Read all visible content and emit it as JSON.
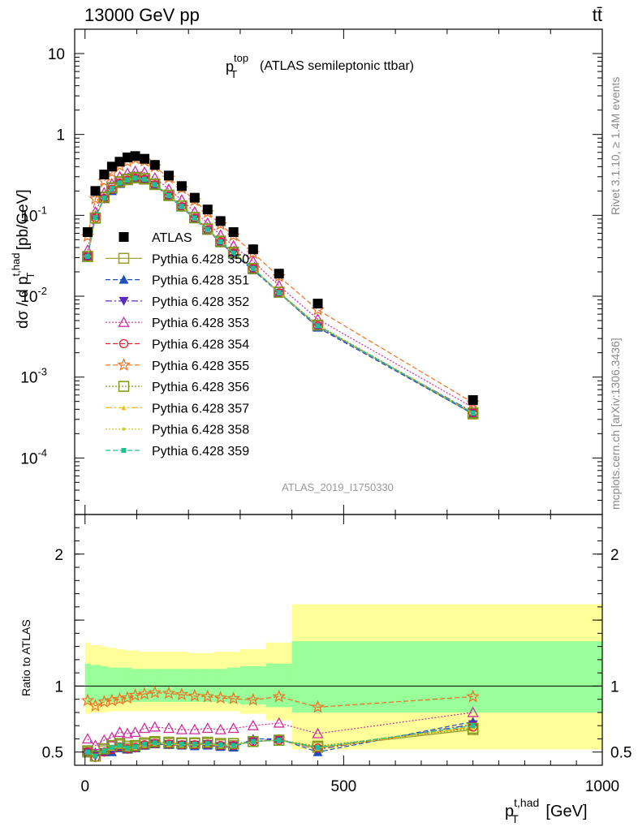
{
  "header": {
    "left": "13000 GeV pp",
    "right": "tt̄"
  },
  "side_labels": {
    "rivet": "Rivet 3.1.10, ≥ 1.4M events",
    "mcplots": "mcplots.cern.ch [arXiv:1306.3436]"
  },
  "colors": {
    "band_outer": "#ffff99",
    "band_inner": "#99ff99",
    "s350": "#999933",
    "s351": "#1f4fbf",
    "s352": "#5b2bbf",
    "s353": "#cc2fa0",
    "s354": "#e8202a",
    "s355": "#f07020",
    "s356": "#7a9a10",
    "s357": "#f0c020",
    "s358": "#c8d020",
    "s359": "#20c090"
  },
  "chart_data": [
    {
      "type": "scatter",
      "title": "(ATLAS semileptonic ttbar)",
      "title_var": "p_T^top",
      "analysis": "ATLAS_2019_I1750330",
      "ylabel": "dσ / d p_T^{t,had} [pb/GeV]",
      "yscale": "log",
      "ylim": [
        2e-05,
        20
      ],
      "xlim": [
        -20,
        1000
      ],
      "y_ticks": [
        "10^{-4}",
        "10^{-3}",
        "10^{-2}",
        "10^{-1}",
        "1",
        "10"
      ],
      "x": [
        5,
        20,
        37,
        52,
        67,
        82,
        97,
        115,
        135,
        162,
        187,
        212,
        237,
        262,
        287,
        325,
        375,
        450,
        750
      ],
      "series": [
        {
          "name": "ATLAS",
          "marker": "square-filled",
          "values": [
            0.062,
            0.2,
            0.32,
            0.4,
            0.46,
            0.52,
            0.54,
            0.5,
            0.42,
            0.31,
            0.23,
            0.165,
            0.118,
            0.085,
            0.062,
            0.038,
            0.019,
            0.0081,
            0.00052
          ]
        },
        {
          "name": "Pythia 6.428 350",
          "marker": "square-open",
          "line": "solid",
          "values": [
            0.031,
            0.092,
            0.165,
            0.215,
            0.255,
            0.275,
            0.29,
            0.28,
            0.24,
            0.175,
            0.13,
            0.093,
            0.067,
            0.047,
            0.034,
            0.022,
            0.0112,
            0.0043,
            0.00035
          ]
        },
        {
          "name": "Pythia 6.428 351",
          "marker": "triangle-up-filled",
          "line": "dashed",
          "values": [
            0.031,
            0.1,
            0.16,
            0.2,
            0.245,
            0.27,
            0.285,
            0.275,
            0.235,
            0.172,
            0.126,
            0.09,
            0.065,
            0.046,
            0.033,
            0.021,
            0.011,
            0.0041,
            0.00035
          ]
        },
        {
          "name": "Pythia 6.428 352",
          "marker": "triangle-down-filled",
          "line": "dashdot",
          "values": [
            0.031,
            0.095,
            0.16,
            0.205,
            0.248,
            0.272,
            0.287,
            0.277,
            0.237,
            0.173,
            0.127,
            0.091,
            0.066,
            0.046,
            0.034,
            0.022,
            0.011,
            0.0042,
            0.00037
          ]
        },
        {
          "name": "Pythia 6.428 353",
          "marker": "triangle-up-open",
          "line": "dotted",
          "values": [
            0.037,
            0.11,
            0.19,
            0.245,
            0.3,
            0.33,
            0.35,
            0.34,
            0.29,
            0.21,
            0.155,
            0.11,
            0.08,
            0.057,
            0.042,
            0.027,
            0.0135,
            0.0052,
            0.00042
          ]
        },
        {
          "name": "Pythia 6.428 354",
          "marker": "circle-open",
          "line": "dashed",
          "values": [
            0.031,
            0.093,
            0.162,
            0.21,
            0.25,
            0.272,
            0.288,
            0.278,
            0.238,
            0.174,
            0.128,
            0.092,
            0.066,
            0.047,
            0.034,
            0.022,
            0.011,
            0.0043,
            0.00036
          ]
        },
        {
          "name": "Pythia 6.428 355",
          "marker": "star-open",
          "line": "dashed",
          "values": [
            0.055,
            0.16,
            0.265,
            0.34,
            0.41,
            0.46,
            0.5,
            0.47,
            0.4,
            0.29,
            0.215,
            0.152,
            0.108,
            0.077,
            0.056,
            0.034,
            0.0175,
            0.0068,
            0.00048
          ]
        },
        {
          "name": "Pythia 6.428 356",
          "marker": "square-open",
          "line": "dotted",
          "values": [
            0.031,
            0.093,
            0.168,
            0.22,
            0.26,
            0.28,
            0.295,
            0.285,
            0.243,
            0.178,
            0.131,
            0.094,
            0.068,
            0.048,
            0.035,
            0.022,
            0.0112,
            0.0044,
            0.00036
          ]
        },
        {
          "name": "Pythia 6.428 357",
          "marker": "tri-small",
          "line": "dashdot",
          "values": [
            0.031,
            0.093,
            0.163,
            0.212,
            0.251,
            0.273,
            0.289,
            0.279,
            0.239,
            0.175,
            0.128,
            0.092,
            0.066,
            0.047,
            0.034,
            0.022,
            0.011,
            0.0043,
            0.00036
          ]
        },
        {
          "name": "Pythia 6.428 358",
          "marker": "dot",
          "line": "dotted",
          "values": [
            0.031,
            0.093,
            0.163,
            0.212,
            0.251,
            0.273,
            0.289,
            0.279,
            0.239,
            0.175,
            0.128,
            0.092,
            0.066,
            0.047,
            0.034,
            0.022,
            0.011,
            0.0043,
            0.00036
          ]
        },
        {
          "name": "Pythia 6.428 359",
          "marker": "square-small",
          "line": "dashed",
          "values": [
            0.031,
            0.094,
            0.164,
            0.214,
            0.252,
            0.274,
            0.29,
            0.28,
            0.24,
            0.176,
            0.129,
            0.093,
            0.067,
            0.047,
            0.034,
            0.022,
            0.0111,
            0.0043,
            0.00036
          ]
        }
      ]
    },
    {
      "type": "scatter",
      "ylabel": "Ratio to ATLAS",
      "xlabel": "p_T^{t,had} [GeV]",
      "ylim": [
        0.4,
        2.3
      ],
      "xlim": [
        -20,
        1000
      ],
      "y_ticks": [
        "0.5",
        "1",
        "2"
      ],
      "x_ticks": [
        "0",
        "500",
        "1000"
      ],
      "band_bins": [
        0,
        10,
        30,
        45,
        60,
        75,
        90,
        105,
        125,
        145,
        180,
        200,
        225,
        250,
        275,
        300,
        350,
        400,
        500,
        1000
      ],
      "band_outer": [
        [
          0.79,
          1.33
        ],
        [
          0.8,
          1.31
        ],
        [
          0.8,
          1.3
        ],
        [
          0.81,
          1.29
        ],
        [
          0.81,
          1.28
        ],
        [
          0.81,
          1.27
        ],
        [
          0.81,
          1.27
        ],
        [
          0.81,
          1.26
        ],
        [
          0.81,
          1.26
        ],
        [
          0.81,
          1.26
        ],
        [
          0.81,
          1.26
        ],
        [
          0.81,
          1.25
        ],
        [
          0.81,
          1.25
        ],
        [
          0.81,
          1.26
        ],
        [
          0.81,
          1.26
        ],
        [
          0.79,
          1.28
        ],
        [
          0.74,
          1.33
        ],
        [
          0.52,
          1.62
        ],
        [
          0.52,
          1.62
        ]
      ],
      "band_inner": [
        [
          0.87,
          1.17
        ],
        [
          0.87,
          1.16
        ],
        [
          0.88,
          1.15
        ],
        [
          0.88,
          1.14
        ],
        [
          0.88,
          1.14
        ],
        [
          0.88,
          1.14
        ],
        [
          0.88,
          1.13
        ],
        [
          0.88,
          1.13
        ],
        [
          0.88,
          1.13
        ],
        [
          0.88,
          1.13
        ],
        [
          0.88,
          1.13
        ],
        [
          0.88,
          1.13
        ],
        [
          0.88,
          1.13
        ],
        [
          0.88,
          1.13
        ],
        [
          0.87,
          1.14
        ],
        [
          0.86,
          1.15
        ],
        [
          0.84,
          1.17
        ],
        [
          0.8,
          1.34
        ],
        [
          0.8,
          1.34
        ]
      ],
      "x": [
        5,
        20,
        37,
        52,
        67,
        82,
        97,
        115,
        135,
        162,
        187,
        212,
        237,
        262,
        287,
        325,
        375,
        450,
        750
      ],
      "series": [
        {
          "name": "Pythia 6.428 350",
          "values": [
            0.5,
            0.47,
            0.51,
            0.54,
            0.555,
            0.53,
            0.54,
            0.56,
            0.57,
            0.565,
            0.565,
            0.565,
            0.565,
            0.555,
            0.55,
            0.58,
            0.59,
            0.535,
            0.67
          ]
        },
        {
          "name": "Pythia 6.428 351",
          "values": [
            0.5,
            0.5,
            0.5,
            0.5,
            0.53,
            0.52,
            0.53,
            0.55,
            0.56,
            0.555,
            0.55,
            0.545,
            0.55,
            0.54,
            0.535,
            0.6,
            0.6,
            0.5,
            0.73
          ]
        },
        {
          "name": "Pythia 6.428 352",
          "values": [
            0.5,
            0.47,
            0.5,
            0.51,
            0.54,
            0.52,
            0.53,
            0.55,
            0.565,
            0.56,
            0.555,
            0.555,
            0.56,
            0.545,
            0.55,
            0.58,
            0.6,
            0.52,
            0.71
          ]
        },
        {
          "name": "Pythia 6.428 353",
          "values": [
            0.6,
            0.55,
            0.59,
            0.61,
            0.65,
            0.64,
            0.65,
            0.68,
            0.69,
            0.68,
            0.67,
            0.67,
            0.68,
            0.67,
            0.68,
            0.7,
            0.72,
            0.64,
            0.8
          ]
        },
        {
          "name": "Pythia 6.428 354",
          "values": [
            0.5,
            0.46,
            0.5,
            0.52,
            0.54,
            0.525,
            0.535,
            0.555,
            0.565,
            0.56,
            0.555,
            0.555,
            0.56,
            0.55,
            0.55,
            0.58,
            0.59,
            0.53,
            0.69
          ]
        },
        {
          "name": "Pythia 6.428 355",
          "values": [
            0.89,
            0.85,
            0.88,
            0.89,
            0.9,
            0.91,
            0.93,
            0.94,
            0.95,
            0.945,
            0.935,
            0.925,
            0.92,
            0.91,
            0.905,
            0.895,
            0.92,
            0.84,
            0.92
          ]
        },
        {
          "name": "Pythia 6.428 356",
          "values": [
            0.51,
            0.47,
            0.525,
            0.55,
            0.565,
            0.545,
            0.55,
            0.57,
            0.58,
            0.575,
            0.57,
            0.57,
            0.575,
            0.565,
            0.565,
            0.58,
            0.59,
            0.545,
            0.68
          ]
        },
        {
          "name": "Pythia 6.428 357",
          "values": [
            0.5,
            0.47,
            0.51,
            0.53,
            0.545,
            0.525,
            0.535,
            0.555,
            0.565,
            0.56,
            0.555,
            0.555,
            0.56,
            0.55,
            0.55,
            0.58,
            0.59,
            0.53,
            0.69
          ]
        },
        {
          "name": "Pythia 6.428 358",
          "values": [
            0.5,
            0.47,
            0.51,
            0.53,
            0.545,
            0.525,
            0.535,
            0.555,
            0.565,
            0.56,
            0.555,
            0.555,
            0.56,
            0.55,
            0.55,
            0.58,
            0.59,
            0.53,
            0.69
          ]
        },
        {
          "name": "Pythia 6.428 359",
          "values": [
            0.5,
            0.47,
            0.51,
            0.535,
            0.55,
            0.53,
            0.54,
            0.56,
            0.57,
            0.565,
            0.56,
            0.56,
            0.565,
            0.555,
            0.55,
            0.58,
            0.59,
            0.535,
            0.7
          ]
        }
      ]
    }
  ]
}
